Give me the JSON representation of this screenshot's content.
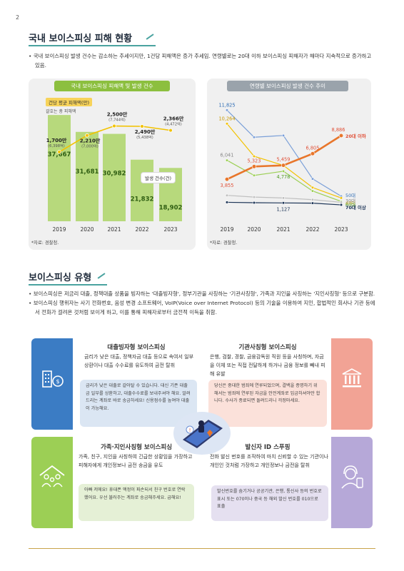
{
  "page_number": "2",
  "section1": {
    "title": "국내 보이스피싱 피해 현황",
    "bullet": "• 국내 보이스피싱 발생 건수는 감소하는 추세이지만, 1건당 피해액은 증가 추세임. 연령별로는 20대 이하 보이스피싱 피해자가 해마다 지속적으로 증가하고 있음."
  },
  "chart_data": [
    {
      "type": "bar",
      "title": "국내 보이스피싱 피해액 및 발생 건수",
      "categories": [
        "2019",
        "2020",
        "2021",
        "2022",
        "2023"
      ],
      "series": [
        {
          "name": "발생 건수(건)",
          "values": [
            37667,
            31681,
            30982,
            21832,
            18902
          ]
        },
        {
          "name": "건당 평균 피해액(만)",
          "values": [
            1700,
            2210,
            2500,
            2490,
            2366
          ]
        }
      ],
      "total_damage_labels": [
        "(6,398억)",
        "(7,000억)",
        "(7,744억)",
        "(5,438억)",
        "(4,472억)"
      ],
      "bar_value_labels": [
        "37,667",
        "31,681",
        "30,982",
        "21,832",
        "18,902"
      ],
      "line_value_labels": [
        "1,700만",
        "2,210만",
        "2,500만",
        "2,490만",
        "2,366만"
      ],
      "legend_line": "건당 평균 피해액(만)",
      "legend_line_sub": "괄호는 총 피해액",
      "legend_bar": "발생 건수(건)",
      "source": "*자료: 경찰청.",
      "colors": {
        "bar": "#b7d97c",
        "line": "#f2c200",
        "title_bg": "#8cbf3f"
      }
    },
    {
      "type": "line",
      "title": "연령별 보이스피싱 발생 건수 추이",
      "categories": [
        "2019",
        "2020",
        "2021",
        "2022",
        "2023"
      ],
      "ylim": [
        0,
        13000
      ],
      "series": [
        {
          "name": "20대 이하",
          "values": [
            3855,
            5323,
            5459,
            6805,
            8886
          ],
          "color": "#e8762b"
        },
        {
          "name": "50대",
          "values": [
            11825,
            8700,
            8900,
            3900,
            1900
          ],
          "color": "#7a9fd8"
        },
        {
          "name": "40대",
          "values": [
            10264,
            6500,
            5459,
            2900,
            1700
          ],
          "color": "#f2c200"
        },
        {
          "name": "60대",
          "values": [
            6041,
            4300,
            4778,
            2500,
            1300
          ],
          "color": "#9ccf55"
        },
        {
          "name": "30대",
          "values": [
            2000,
            1800,
            1700,
            1500,
            1200
          ],
          "color": "#bfbfbf"
        },
        {
          "name": "70대 이상",
          "values": [
            1200,
            1150,
            1127,
            1100,
            900
          ],
          "color": "#1d3557"
        }
      ],
      "point_labels": {
        "top_2019": "11,825",
        "40_2019": "10,264",
        "60_2019": "6,041",
        "20_2019": "3,855",
        "20_2020": "5,323",
        "20_2021": "5,459",
        "60_2021": "4,778",
        "20_2022": "6,805",
        "20_2023": "8,886",
        "70_2021": "1,127"
      },
      "source": "*자료: 경찰청.",
      "colors": {
        "title_bg": "#9aa3ab"
      }
    }
  ],
  "section2": {
    "title": "보이스피싱 유형",
    "bullet1": "• 보이스피싱은 저금리 대출, 정책대출 상품을 빙자하는 '대출빙자형', 정부기관을 사칭하는 '기관사칭형', 가족과 지인을 사칭하는 '지인사칭형' 등으로 구분함.",
    "bullet2": "• 보이스피싱 행위자는 사기 전화번호, 음성 변경 소프트웨어, VoIP(Voice over Internet Protocol) 등의 기술을 이용하여 지인, 합법적인 회사나 기관 등에서 전화가 걸려온 것처럼 보이게 하고, 이를 통해 피해자로부터 금전적 이득을 취함."
  },
  "cards": {
    "loan": {
      "title": "대출빙자형 보이스피싱",
      "body": "금리가 낮은 대출, 정책자금 대출 등으로 속여서 일부 상환이나 대출 수수료를 유도하여 금전 탈취",
      "quote": "금리가 낮은 대출로 갈아탈 수 있습니다. 대신 기존 대출금 일부를 상환하고, 대출수수료를 보내주셔야 해요. 알려드리는 계좌로 바로 송금하세요! 신용점수를 높여야 대출이 가능해요.",
      "color": "#2f6db5",
      "bg": "#dbe6f3"
    },
    "agency": {
      "title": "기관사칭형 보이스피싱",
      "body": "은행, 검찰, 경찰, 금융감독원 직원 등을 사칭하며, 자금을 이체 또는 직접 전달하게 하거나 금융 정보를 빼내 피해 유발",
      "quote": "당신은 중대한 범죄에 연루되었으며, 결백을 증명하기 위해서는 범죄에 연루된 자금을 안전계좌로 입금하셔야만 합니다. 수사가 종료되면 돌려드리니 걱정마세요.",
      "color": "#e0523a",
      "bg": "#fbe1da"
    },
    "family": {
      "title": "가족·지인사칭형 보이스피싱",
      "body": "가족, 친구, 지인을 사칭하여 긴급한 상황임을 가장하고 피해자에게 개인정보나 금전 송금을 유도",
      "quote": "아빠 저에요! 휴대폰 액정이 파손되서 친구 번호로 연락했어요. 우선 불러주는 계좌로 송금해주세요. 급해요!",
      "color": "#4d9a1e",
      "bg": "#e5f0d6"
    },
    "caller": {
      "title": "발신자 ID 스푸핑",
      "body": "전화 발신 번호를 조작하여 마치 신뢰할 수 있는 기관이나 개인인 것처럼 가장하고 개인정보나 금전을 탈취",
      "quote": "발신번호를 숨기거나 공공기관, 은행, 통신사 등의 번호로 표시 또는 070이나 중국 등 해외 발신 번호를 010으로 표출",
      "color": "#6d56a8",
      "bg": "#e5e0f0"
    }
  }
}
